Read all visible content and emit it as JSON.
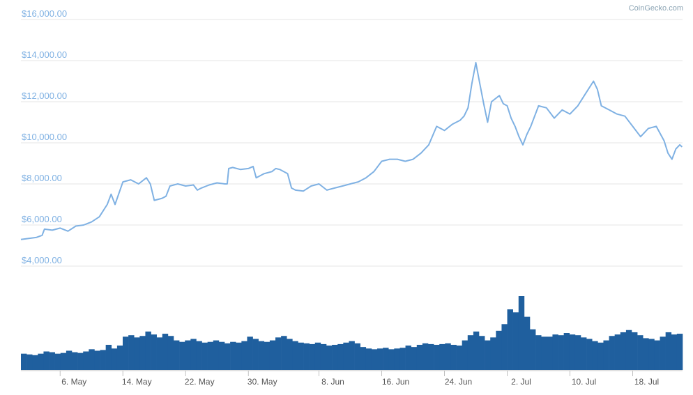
{
  "credit": "CoinGecko.com",
  "colors": {
    "price_line": "#7fb1e3",
    "volume_bar": "#1f5f9e",
    "grid": "#e6e6e6",
    "y_label": "#7fb1e3",
    "x_label": "#555555"
  },
  "chart_data": {
    "type": "line",
    "price": {
      "y_ticks": [
        {
          "value": 16000,
          "label": "$16,000.00"
        },
        {
          "value": 14000,
          "label": "$14,000.00"
        },
        {
          "value": 12000,
          "label": "$12,000.00"
        },
        {
          "value": 10000,
          "label": "$10,000.00"
        },
        {
          "value": 8000,
          "label": "$8,000.00"
        },
        {
          "value": 6000,
          "label": "$6,000.00"
        },
        {
          "value": 4000,
          "label": "$4,000.00"
        }
      ],
      "ylim": [
        4000,
        16000
      ],
      "x_day_range": [
        0,
        76.3
      ],
      "points": [
        [
          0,
          5300
        ],
        [
          1,
          5350
        ],
        [
          2,
          5400
        ],
        [
          2.7,
          5500
        ],
        [
          3,
          5800
        ],
        [
          4,
          5750
        ],
        [
          5,
          5850
        ],
        [
          6,
          5700
        ],
        [
          7,
          5950
        ],
        [
          8,
          6000
        ],
        [
          9,
          6150
        ],
        [
          10,
          6400
        ],
        [
          11,
          7000
        ],
        [
          11.5,
          7500
        ],
        [
          12,
          7000
        ],
        [
          13,
          8100
        ],
        [
          14,
          8200
        ],
        [
          15,
          8000
        ],
        [
          16,
          8300
        ],
        [
          16.5,
          8000
        ],
        [
          17,
          7200
        ],
        [
          18,
          7300
        ],
        [
          18.5,
          7400
        ],
        [
          19,
          7900
        ],
        [
          20,
          8000
        ],
        [
          21,
          7900
        ],
        [
          22,
          7950
        ],
        [
          22.5,
          7700
        ],
        [
          23,
          7800
        ],
        [
          24,
          7950
        ],
        [
          25,
          8050
        ],
        [
          26,
          8000
        ],
        [
          26.3,
          8000
        ],
        [
          26.5,
          8750
        ],
        [
          27,
          8800
        ],
        [
          28,
          8700
        ],
        [
          29,
          8750
        ],
        [
          29.6,
          8850
        ],
        [
          30,
          8300
        ],
        [
          31,
          8500
        ],
        [
          32,
          8600
        ],
        [
          32.5,
          8750
        ],
        [
          33,
          8700
        ],
        [
          34,
          8500
        ],
        [
          34.5,
          7800
        ],
        [
          35,
          7700
        ],
        [
          36,
          7650
        ],
        [
          37,
          7900
        ],
        [
          38,
          8000
        ],
        [
          39,
          7700
        ],
        [
          40,
          7800
        ],
        [
          41,
          7900
        ],
        [
          42,
          8000
        ],
        [
          43,
          8100
        ],
        [
          44,
          8300
        ],
        [
          45,
          8600
        ],
        [
          46,
          9100
        ],
        [
          47,
          9200
        ],
        [
          48,
          9200
        ],
        [
          49,
          9100
        ],
        [
          50,
          9200
        ],
        [
          51,
          9500
        ],
        [
          52,
          9900
        ],
        [
          53,
          10800
        ],
        [
          54,
          10600
        ],
        [
          55,
          10900
        ],
        [
          56,
          11100
        ],
        [
          56.5,
          11300
        ],
        [
          57,
          11700
        ],
        [
          57.5,
          12900
        ],
        [
          58,
          13900
        ],
        [
          58.5,
          12900
        ],
        [
          59,
          11900
        ],
        [
          59.5,
          11000
        ],
        [
          60,
          12000
        ],
        [
          61,
          12300
        ],
        [
          61.5,
          11900
        ],
        [
          62,
          11800
        ],
        [
          62.5,
          11200
        ],
        [
          63,
          10800
        ],
        [
          63.5,
          10300
        ],
        [
          64,
          9900
        ],
        [
          64.5,
          10400
        ],
        [
          65,
          10800
        ],
        [
          66,
          11800
        ],
        [
          67,
          11700
        ],
        [
          68,
          11200
        ],
        [
          69,
          11600
        ],
        [
          70,
          11400
        ],
        [
          71,
          11800
        ],
        [
          72,
          12400
        ],
        [
          73,
          13000
        ],
        [
          73.5,
          12600
        ],
        [
          74,
          11800
        ],
        [
          75,
          11600
        ],
        [
          76,
          11400
        ],
        [
          77,
          11300
        ],
        [
          78,
          10800
        ],
        [
          79,
          10300
        ],
        [
          80,
          10700
        ],
        [
          81,
          10800
        ],
        [
          82,
          10100
        ],
        [
          82.5,
          9500
        ],
        [
          83,
          9200
        ],
        [
          83.5,
          9700
        ],
        [
          84,
          9900
        ],
        [
          84.3,
          9800
        ]
      ]
    },
    "volume": {
      "note": "relative trading volume (unlabeled axis), 0-1 scale",
      "bars": [
        0.22,
        0.21,
        0.2,
        0.22,
        0.25,
        0.24,
        0.22,
        0.23,
        0.26,
        0.24,
        0.23,
        0.25,
        0.28,
        0.26,
        0.27,
        0.34,
        0.29,
        0.33,
        0.45,
        0.47,
        0.44,
        0.46,
        0.52,
        0.48,
        0.44,
        0.49,
        0.46,
        0.4,
        0.38,
        0.4,
        0.42,
        0.39,
        0.37,
        0.38,
        0.4,
        0.38,
        0.36,
        0.38,
        0.37,
        0.39,
        0.45,
        0.42,
        0.39,
        0.38,
        0.4,
        0.44,
        0.46,
        0.42,
        0.39,
        0.37,
        0.36,
        0.35,
        0.37,
        0.35,
        0.33,
        0.34,
        0.35,
        0.37,
        0.39,
        0.36,
        0.31,
        0.29,
        0.28,
        0.29,
        0.3,
        0.28,
        0.29,
        0.3,
        0.33,
        0.31,
        0.34,
        0.36,
        0.35,
        0.34,
        0.35,
        0.36,
        0.34,
        0.33,
        0.4,
        0.47,
        0.52,
        0.46,
        0.4,
        0.44,
        0.53,
        0.62,
        0.82,
        0.78,
        1.0,
        0.72,
        0.55,
        0.47,
        0.45,
        0.45,
        0.48,
        0.47,
        0.5,
        0.48,
        0.47,
        0.44,
        0.42,
        0.39,
        0.37,
        0.4,
        0.46,
        0.48,
        0.51,
        0.54,
        0.51,
        0.47,
        0.43,
        0.42,
        0.4,
        0.45,
        0.51,
        0.48,
        0.49
      ]
    },
    "x_ticks": [
      {
        "day": 5,
        "label": "6. May"
      },
      {
        "day": 13,
        "label": "14. May"
      },
      {
        "day": 21,
        "label": "22. May"
      },
      {
        "day": 29,
        "label": "30. May"
      },
      {
        "day": 38,
        "label": "8. Jun"
      },
      {
        "day": 46,
        "label": "16. Jun"
      },
      {
        "day": 54,
        "label": "24. Jun"
      },
      {
        "day": 62,
        "label": "2. Jul"
      },
      {
        "day": 70,
        "label": "10. Jul"
      },
      {
        "day": 78,
        "label": "18. Jul"
      }
    ],
    "grid": true,
    "legend": "none"
  }
}
